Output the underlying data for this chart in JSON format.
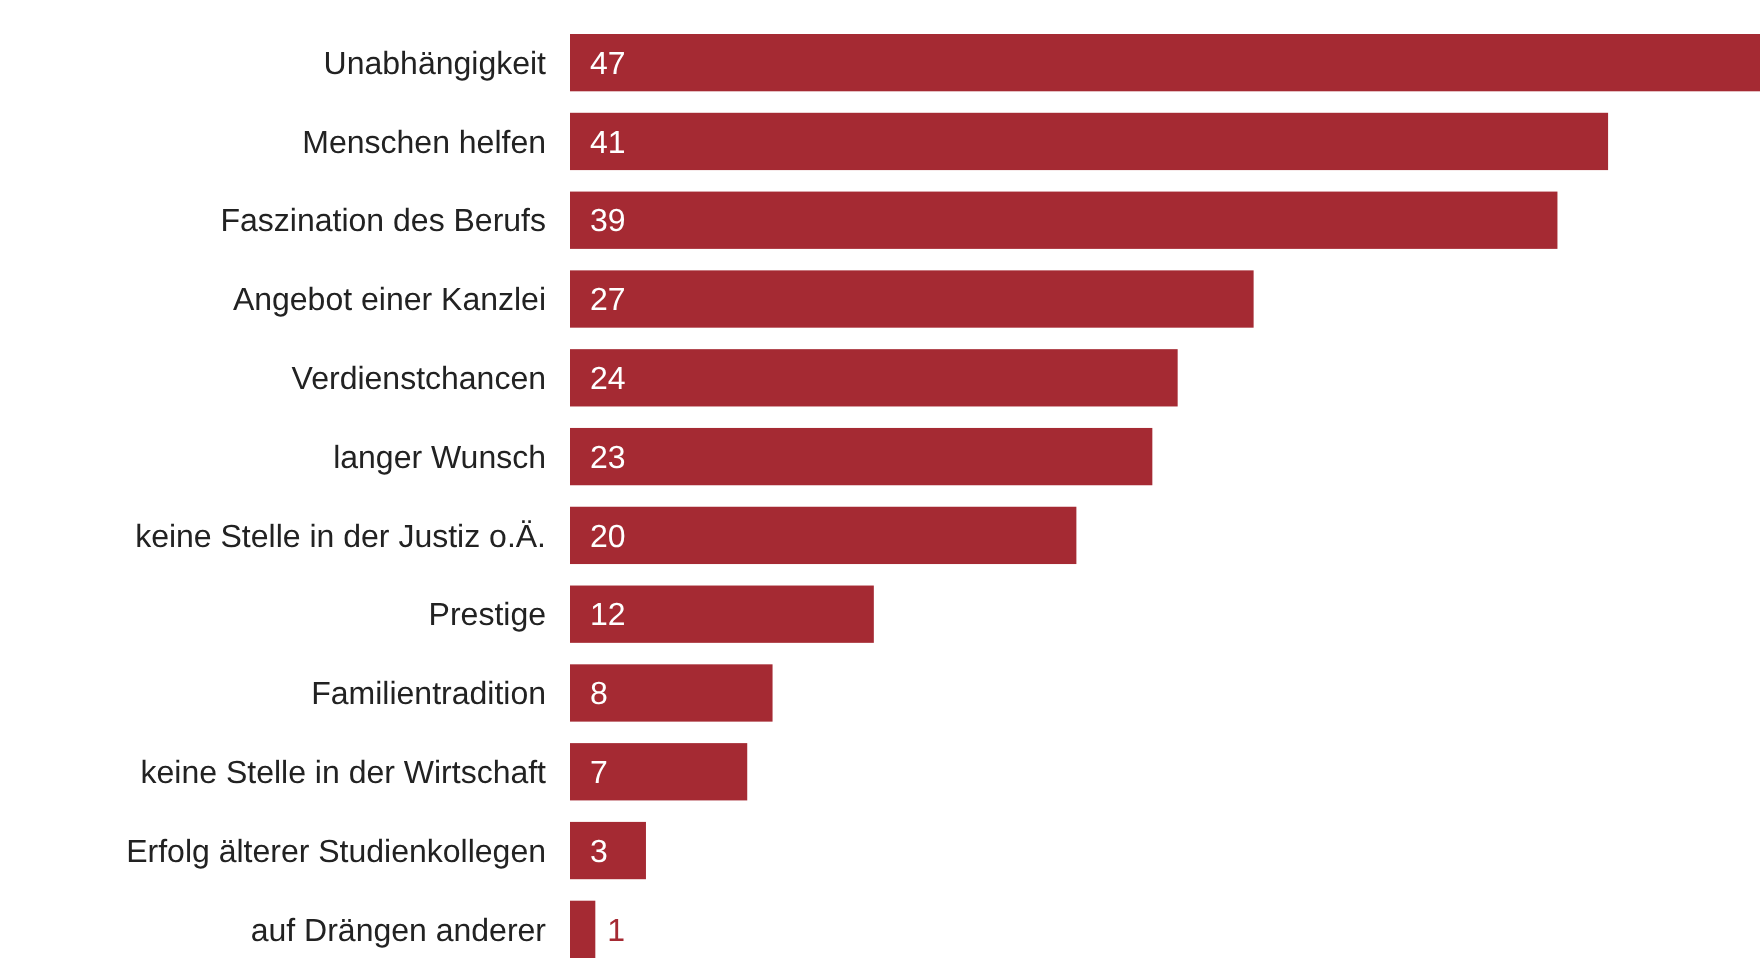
{
  "chart_data": {
    "type": "bar",
    "orientation": "horizontal",
    "categories": [
      "Unabhängigkeit",
      "Menschen helfen",
      "Faszination des Berufs",
      "Angebot einer Kanzlei",
      "Verdienstchancen",
      "langer Wunsch",
      "keine Stelle in der Justiz o.Ä.",
      "Prestige",
      "Familientradition",
      "keine Stelle in der Wirtschaft",
      "Erfolg älterer Studienkollegen",
      "auf Drängen anderer"
    ],
    "values": [
      47,
      41,
      39,
      27,
      24,
      23,
      20,
      12,
      8,
      7,
      3,
      1
    ],
    "color": "#a52a33",
    "data_labels": true
  }
}
